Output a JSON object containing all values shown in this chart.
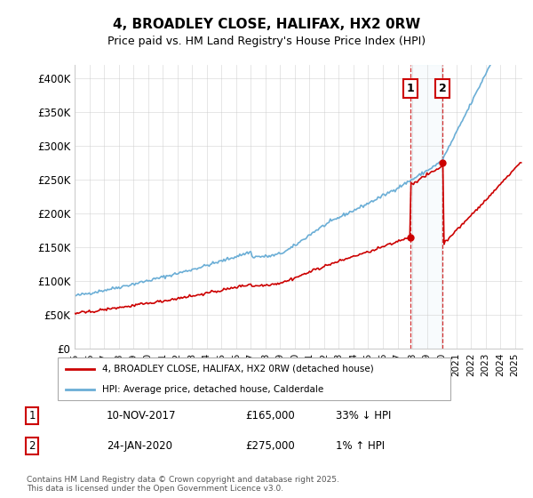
{
  "title": "4, BROADLEY CLOSE, HALIFAX, HX2 0RW",
  "subtitle": "Price paid vs. HM Land Registry's House Price Index (HPI)",
  "ylabel_ticks": [
    "£0",
    "£50K",
    "£100K",
    "£150K",
    "£200K",
    "£250K",
    "£300K",
    "£350K",
    "£400K"
  ],
  "ytick_values": [
    0,
    50000,
    100000,
    150000,
    200000,
    250000,
    300000,
    350000,
    400000
  ],
  "ylim": [
    0,
    420000
  ],
  "xlim_start": 1995.0,
  "xlim_end": 2025.5,
  "hpi_color": "#6baed6",
  "price_color": "#cc0000",
  "marker1_x": 2017.86,
  "marker1_y": 165000,
  "marker2_x": 2020.07,
  "marker2_y": 275000,
  "marker1_label": "10-NOV-2017",
  "marker1_price": "£165,000",
  "marker1_hpi": "33% ↓ HPI",
  "marker2_label": "24-JAN-2020",
  "marker2_price": "£275,000",
  "marker2_hpi": "1% ↑ HPI",
  "legend_line1": "4, BROADLEY CLOSE, HALIFAX, HX2 0RW (detached house)",
  "legend_line2": "HPI: Average price, detached house, Calderdale",
  "footnote": "Contains HM Land Registry data © Crown copyright and database right 2025.\nThis data is licensed under the Open Government Licence v3.0.",
  "background_color": "#ffffff",
  "grid_color": "#cccccc"
}
